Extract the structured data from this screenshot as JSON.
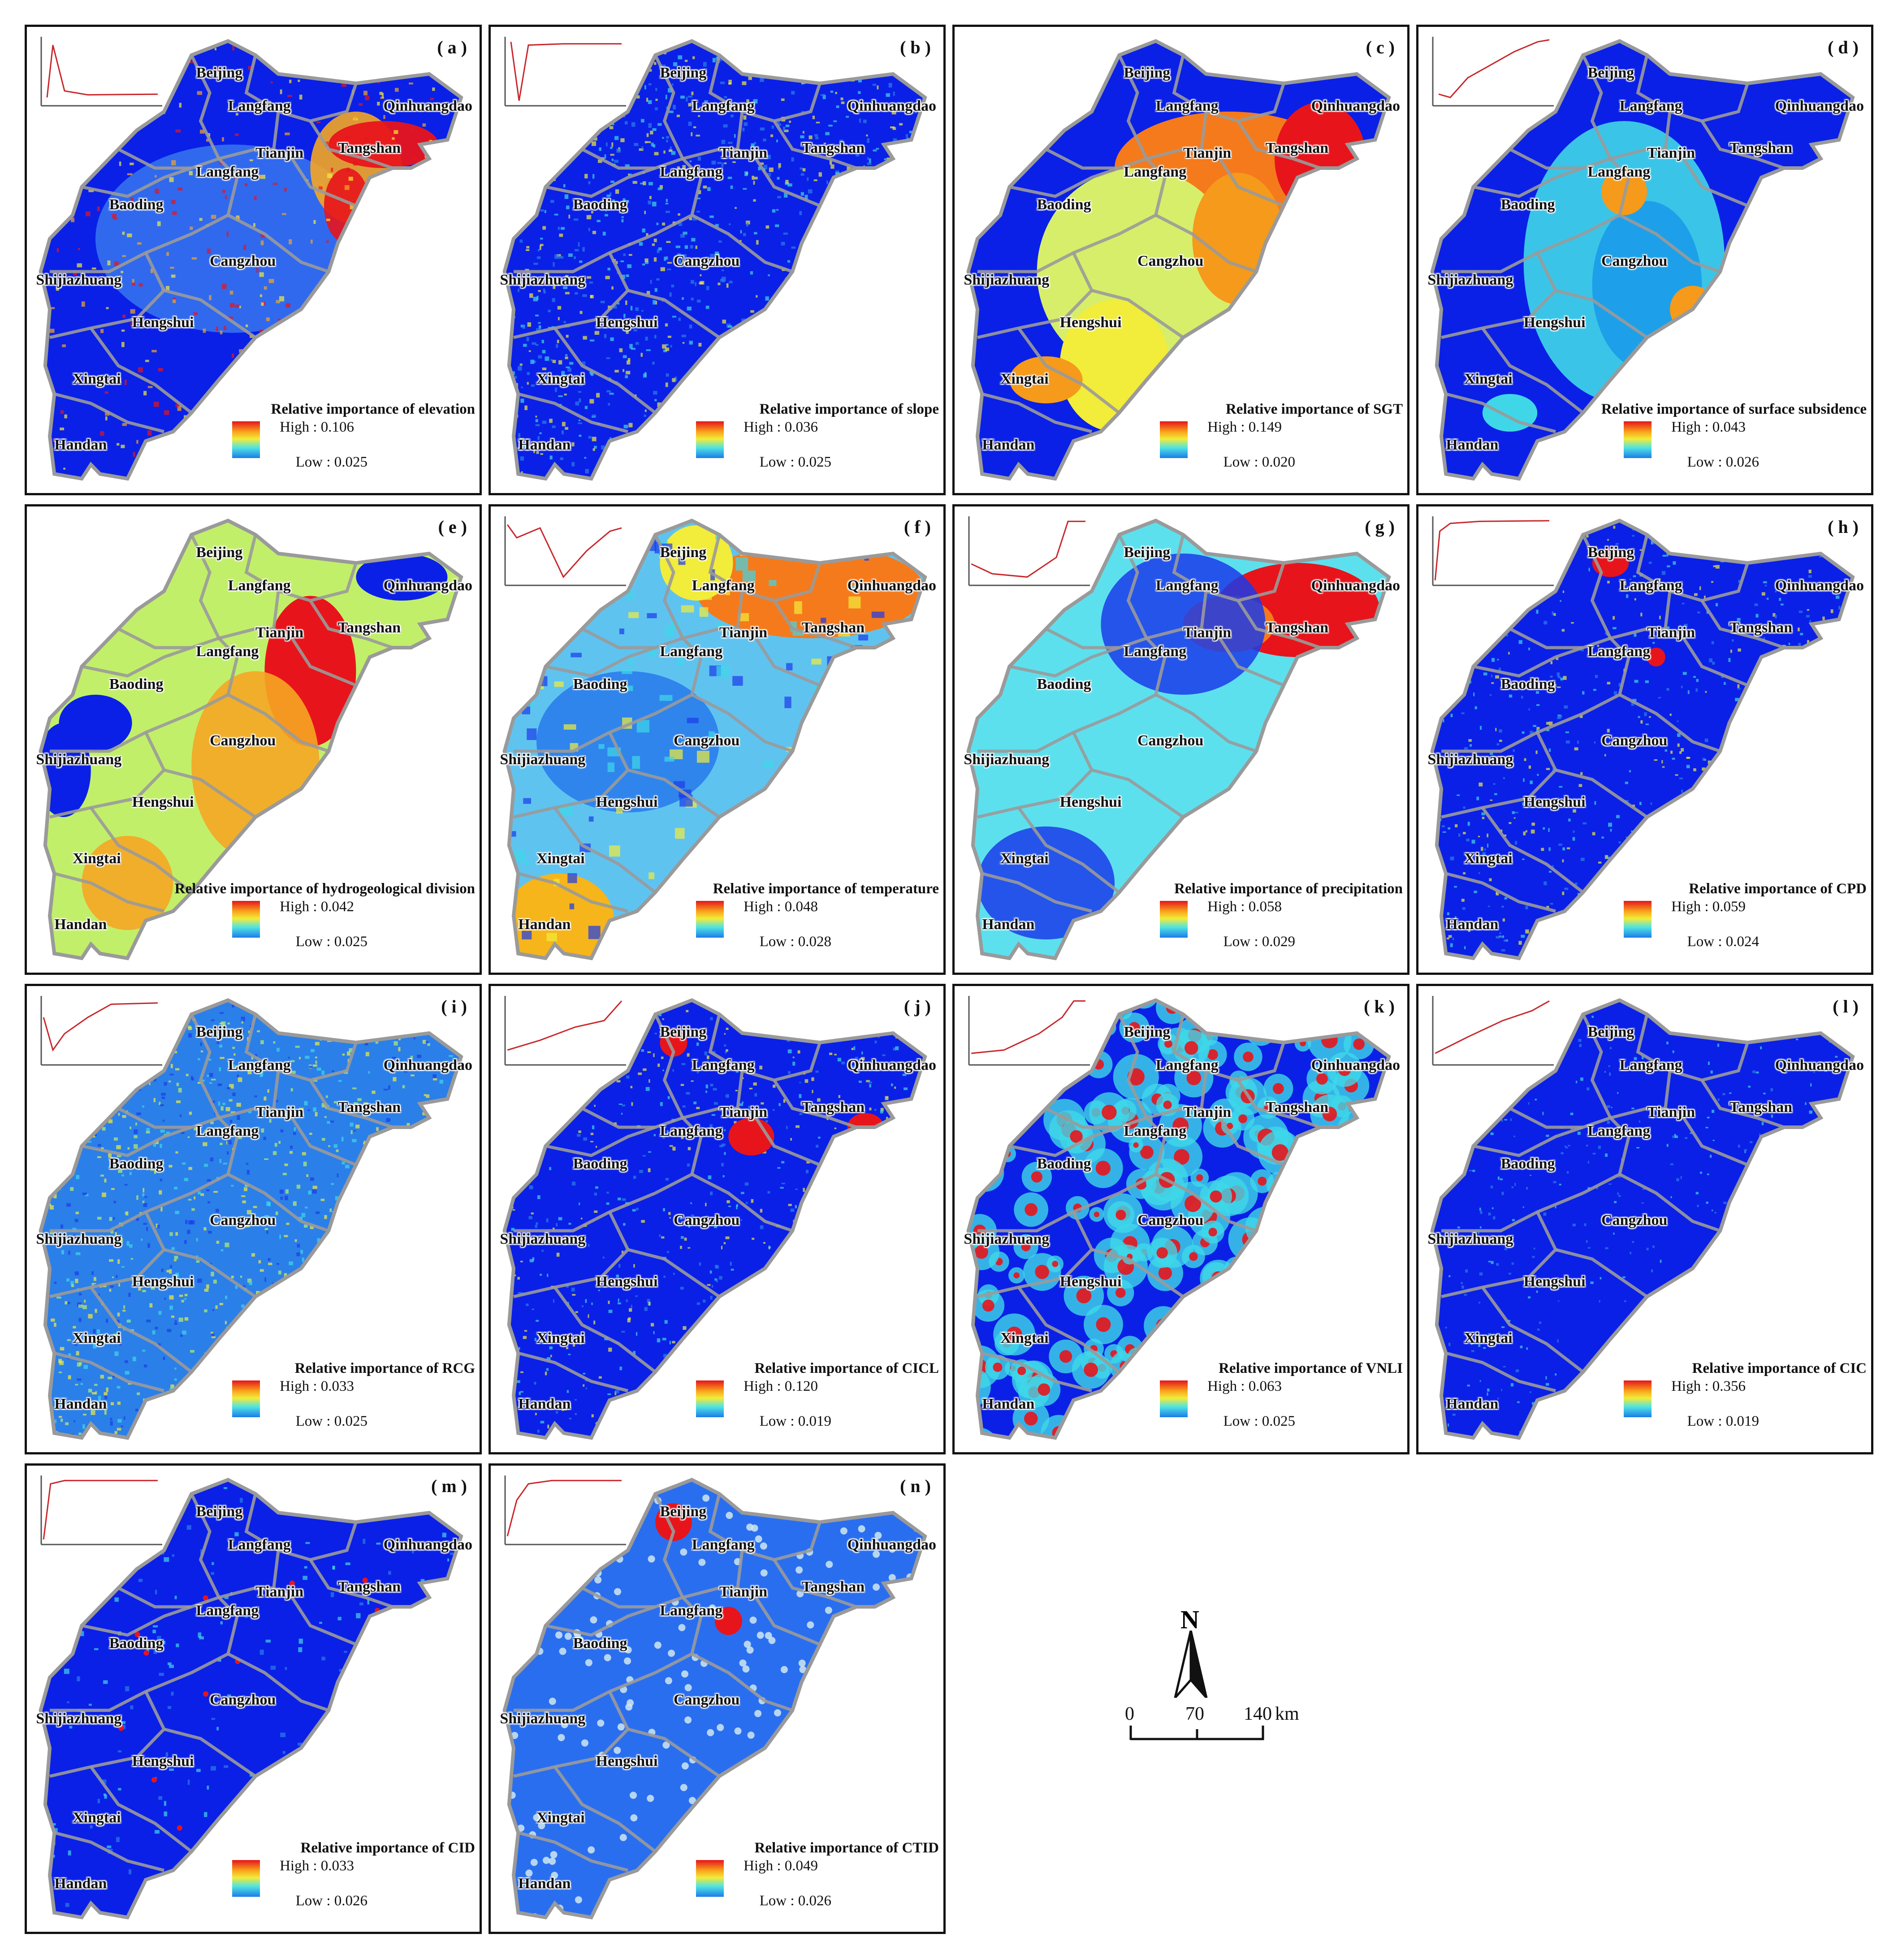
{
  "panels": [
    {
      "id": "a",
      "label": "( a )",
      "title": "Relative importance of elevation",
      "high": "High : 0.106",
      "low": "Low : 0.025",
      "scheme": "elevation",
      "curve": [
        [
          0.05,
          0.9
        ],
        [
          0.1,
          0.1
        ],
        [
          0.2,
          0.8
        ],
        [
          0.4,
          0.86
        ],
        [
          1,
          0.85
        ]
      ]
    },
    {
      "id": "b",
      "label": "( b )",
      "title": "Relative importance of slope",
      "high": "High : 0.036",
      "low": "Low : 0.025",
      "scheme": "noisy",
      "curve": [
        [
          0.05,
          0.05
        ],
        [
          0.12,
          0.95
        ],
        [
          0.2,
          0.1
        ],
        [
          0.5,
          0.08
        ],
        [
          1,
          0.08
        ]
      ]
    },
    {
      "id": "c",
      "label": "( c )",
      "title": "Relative importance of SGT",
      "high": "High : 0.149",
      "low": "Low : 0.020",
      "scheme": "sgt",
      "curve": []
    },
    {
      "id": "d",
      "label": "( d )",
      "title": "Relative importance of surface subsidence",
      "high": "High : 0.043",
      "low": "Low : 0.026",
      "scheme": "subsidence",
      "curve": [
        [
          0.05,
          0.85
        ],
        [
          0.15,
          0.9
        ],
        [
          0.3,
          0.6
        ],
        [
          0.5,
          0.4
        ],
        [
          0.7,
          0.2
        ],
        [
          0.9,
          0.05
        ],
        [
          1,
          0.02
        ]
      ]
    },
    {
      "id": "e",
      "label": "( e )",
      "title": "Relative importance of hydrogeological division",
      "high": "High : 0.042",
      "low": "Low : 0.025",
      "scheme": "hydro",
      "curve": []
    },
    {
      "id": "f",
      "label": "( f )",
      "title": "Relative importance of temperature",
      "high": "High : 0.048",
      "low": "Low : 0.028",
      "scheme": "temperature",
      "curve": [
        [
          0.02,
          0.1
        ],
        [
          0.1,
          0.3
        ],
        [
          0.3,
          0.15
        ],
        [
          0.5,
          0.9
        ],
        [
          0.7,
          0.5
        ],
        [
          0.9,
          0.2
        ],
        [
          1,
          0.15
        ]
      ]
    },
    {
      "id": "g",
      "label": "( g )",
      "title": "Relative importance of precipitation",
      "high": "High : 0.058",
      "low": "Low : 0.029",
      "scheme": "precipitation",
      "curve": [
        [
          0.02,
          0.7
        ],
        [
          0.2,
          0.85
        ],
        [
          0.5,
          0.9
        ],
        [
          0.75,
          0.6
        ],
        [
          0.85,
          0.05
        ],
        [
          1,
          0.05
        ]
      ]
    },
    {
      "id": "h",
      "label": "( h )",
      "title": "Relative importance of CPD",
      "high": "High : 0.059",
      "low": "Low : 0.024",
      "scheme": "cpd",
      "curve": [
        [
          0.02,
          0.95
        ],
        [
          0.06,
          0.2
        ],
        [
          0.15,
          0.08
        ],
        [
          0.4,
          0.05
        ],
        [
          1,
          0.04
        ]
      ]
    },
    {
      "id": "i",
      "label": "( i )",
      "title": "Relative importance of RCG",
      "high": "High : 0.033",
      "low": "Low : 0.025",
      "scheme": "rcg",
      "curve": [
        [
          0.02,
          0.3
        ],
        [
          0.1,
          0.8
        ],
        [
          0.2,
          0.55
        ],
        [
          0.4,
          0.3
        ],
        [
          0.6,
          0.1
        ],
        [
          1,
          0.08
        ]
      ]
    },
    {
      "id": "j",
      "label": "( j )",
      "title": "Relative importance of CICL",
      "high": "High : 0.120",
      "low": "Low : 0.019",
      "scheme": "cicl",
      "curve": [
        [
          0.02,
          0.8
        ],
        [
          0.3,
          0.65
        ],
        [
          0.6,
          0.45
        ],
        [
          0.85,
          0.35
        ],
        [
          1,
          0.05
        ]
      ]
    },
    {
      "id": "k",
      "label": "( k )",
      "title": "Relative importance of VNLI",
      "high": "High : 0.063",
      "low": "Low : 0.025",
      "scheme": "vnli",
      "curve": [
        [
          0.02,
          0.85
        ],
        [
          0.3,
          0.8
        ],
        [
          0.6,
          0.55
        ],
        [
          0.8,
          0.3
        ],
        [
          0.9,
          0.05
        ],
        [
          1,
          0.05
        ]
      ]
    },
    {
      "id": "l",
      "label": "( l )",
      "title": "Relative importance of CIC",
      "high": "High : 0.356",
      "low": "Low : 0.019",
      "scheme": "cic",
      "curve": [
        [
          0.02,
          0.85
        ],
        [
          0.3,
          0.6
        ],
        [
          0.6,
          0.35
        ],
        [
          0.85,
          0.2
        ],
        [
          1,
          0.05
        ]
      ]
    },
    {
      "id": "m",
      "label": "( m )",
      "title": "Relative importance of CID",
      "high": "High : 0.033",
      "low": "Low : 0.026",
      "scheme": "cid",
      "curve": [
        [
          0.02,
          0.95
        ],
        [
          0.08,
          0.1
        ],
        [
          0.2,
          0.05
        ],
        [
          0.5,
          0.05
        ],
        [
          1,
          0.05
        ]
      ]
    },
    {
      "id": "n",
      "label": "( n )",
      "title": "Relative importance of CTID",
      "high": "High : 0.049",
      "low": "Low : 0.026",
      "scheme": "ctid",
      "curve": [
        [
          0.02,
          0.9
        ],
        [
          0.1,
          0.35
        ],
        [
          0.2,
          0.1
        ],
        [
          0.4,
          0.05
        ],
        [
          1,
          0.05
        ]
      ]
    }
  ],
  "cities": [
    "Beijing",
    "Langfang",
    "Qinhuangdao",
    "Tianjin",
    "Tangshan",
    "Langfang",
    "Baoding",
    "Cangzhou",
    "Shijiazhuang",
    "Hengshui",
    "Xingtai",
    "Handan"
  ],
  "colors": {
    "low": "#0a20e6",
    "mid": "#3fd7e8",
    "high": "#e8141b",
    "border": "#9a9a9a",
    "curve": "#c8262b"
  },
  "north_label": "N",
  "scale": {
    "labels": [
      "0",
      "70",
      "140"
    ],
    "unit": "km"
  }
}
